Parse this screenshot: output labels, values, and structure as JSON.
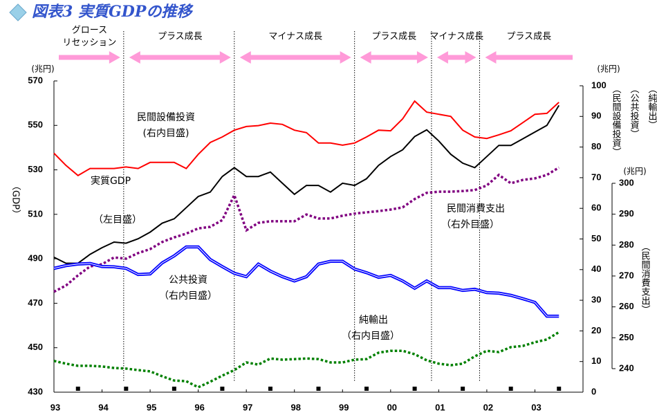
{
  "chart_data": {
    "type": "line",
    "title": "図表3 実質GDPの推移",
    "x": [
      1993,
      1993.25,
      1993.5,
      1993.75,
      1994,
      1994.25,
      1994.5,
      1994.75,
      1995,
      1995.25,
      1995.5,
      1995.75,
      1996,
      1996.25,
      1996.5,
      1996.75,
      1997,
      1997.25,
      1997.5,
      1997.75,
      1998,
      1998.25,
      1998.5,
      1998.75,
      1999,
      1999.25,
      1999.5,
      1999.75,
      2000,
      2000.25,
      2000.5,
      2000.75,
      2001,
      2001.25,
      2001.5,
      2001.75,
      2002,
      2002.25,
      2002.5,
      2002.75,
      2003,
      2003.25,
      2003.5
    ],
    "xlim": [
      1993,
      2004
    ],
    "xticks": [
      {
        "value": 1993,
        "label": "93"
      },
      {
        "value": 1994,
        "label": "94"
      },
      {
        "value": 1995,
        "label": "95"
      },
      {
        "value": 1996,
        "label": "96"
      },
      {
        "value": 1997,
        "label": "97"
      },
      {
        "value": 1998,
        "label": "98"
      },
      {
        "value": 1999,
        "label": "99"
      },
      {
        "value": 2000,
        "label": "00"
      },
      {
        "value": 2001,
        "label": "01"
      },
      {
        "value": 2002,
        "label": "02"
      },
      {
        "value": 2003,
        "label": "03"
      }
    ],
    "xminorticks": [
      1993.5,
      1994.5,
      1995.5,
      1996.5,
      1997.5,
      1998.5,
      1999.5,
      2000.5,
      2001.5,
      2002.5,
      2003.5
    ],
    "ylim": [
      430,
      570
    ],
    "yticks": [
      430,
      450,
      470,
      490,
      510,
      530,
      550,
      570
    ],
    "ylabel": "（GDP）",
    "yunit": "(兆円)",
    "y2lim": [
      0,
      100
    ],
    "y2ticks": [
      0,
      10,
      20,
      30,
      40,
      50,
      60,
      70,
      80,
      90,
      100
    ],
    "y2unit": "(兆円)",
    "y2labels": [
      "（民間設備投資）",
      "（公共投資）",
      "（純輸出）"
    ],
    "y3lim": [
      240,
      300
    ],
    "y3ticks": [
      240,
      250,
      260,
      270,
      280,
      290,
      300
    ],
    "y3unit": "(兆円)",
    "y3label": "（民間消費支出）",
    "phase_boundaries": [
      1994.45,
      1996.75,
      1999.25,
      2000.85,
      2001.85
    ],
    "phases": [
      {
        "label": [
          "グロース",
          "リセッション"
        ]
      },
      {
        "label": [
          "プラス成長"
        ]
      },
      {
        "label": [
          "マイナス成長"
        ]
      },
      {
        "label": [
          "プラス成長"
        ]
      },
      {
        "label": [
          "マイナス成長"
        ]
      },
      {
        "label": [
          "プラス成長"
        ]
      }
    ],
    "series": [
      {
        "name": "民間設備投資",
        "note": "(右内目盛)",
        "color": "#ff0000",
        "style": "solid",
        "axis": "y2",
        "values": [
          78,
          74,
          70.7,
          73,
          73,
          73,
          73.5,
          73,
          75,
          75,
          75,
          73,
          77.6,
          81.5,
          83.3,
          85.5,
          86.7,
          87,
          87.8,
          87.4,
          85.5,
          84.7,
          81.3,
          81.3,
          80.6,
          81.3,
          83.3,
          85.5,
          85.3,
          89.2,
          95,
          91.4,
          90.7,
          90,
          85.5,
          83.3,
          82.8,
          84,
          85.3,
          88,
          90.7,
          91,
          94.6
        ]
      },
      {
        "name": "実質GDP",
        "note": "（左目盛）",
        "color": "#000000",
        "style": "solid",
        "axis": "y",
        "values": [
          490.7,
          488,
          488,
          492,
          495,
          497.5,
          497,
          499,
          502,
          506,
          508,
          513,
          518,
          520,
          527,
          531,
          527,
          527,
          529,
          524,
          519,
          523,
          523,
          520,
          524,
          523,
          526,
          532,
          536,
          539,
          545,
          548,
          543,
          537,
          533,
          531,
          536,
          541,
          541,
          544,
          547,
          550,
          559
        ]
      },
      {
        "name": "民間消費支出",
        "note": "（右外目盛）",
        "color": "#800080",
        "style": "dotted",
        "axis": "y3",
        "values": [
          264.9,
          266.9,
          270.2,
          273.1,
          273.8,
          276,
          275.6,
          277.4,
          278.7,
          281,
          282.5,
          283.7,
          285.4,
          285.9,
          288.1,
          296.2,
          284.8,
          287.2,
          287.7,
          287.7,
          287.7,
          289.9,
          288.6,
          288.6,
          289.5,
          290.2,
          290.6,
          291,
          291.5,
          292.2,
          294.9,
          296.9,
          297.3,
          297.3,
          297.5,
          297.8,
          299.3,
          302.7,
          300,
          301.1,
          301.6,
          302.7,
          305.1
        ]
      },
      {
        "name": "公共投資",
        "note": "（右内目盛）",
        "color": "#0000ff",
        "style": "double",
        "axis": "y2",
        "values": [
          40.4,
          41.3,
          41.8,
          42,
          41,
          40.9,
          40.4,
          38.4,
          38.6,
          42.2,
          44.5,
          47.4,
          47.4,
          43.3,
          41,
          38.8,
          37.7,
          41.8,
          39.5,
          37.7,
          36.3,
          37.7,
          41.8,
          42.7,
          42.7,
          40.2,
          39,
          37.5,
          38.1,
          36.3,
          33.9,
          36.3,
          34.1,
          34.1,
          33.2,
          33.6,
          32.5,
          32.3,
          31.6,
          30.5,
          29.3,
          24.8,
          24.8
        ]
      },
      {
        "name": "純輸出",
        "note": "（右内目盛）",
        "color": "#008000",
        "style": "dotted",
        "axis": "y2",
        "values": [
          10.2,
          9.3,
          8.6,
          8.6,
          8.4,
          7.9,
          7.7,
          7.2,
          6.8,
          5.2,
          3.8,
          3.6,
          1.6,
          3.4,
          5.4,
          7.2,
          9.7,
          9,
          11,
          10.6,
          10.8,
          11,
          10.8,
          9.7,
          9.7,
          10.6,
          10.8,
          12.9,
          13.5,
          13.5,
          12.4,
          10.4,
          9.3,
          8.8,
          9.3,
          11.7,
          13.5,
          13.1,
          14.7,
          15.1,
          16.3,
          17.2,
          19.6
        ]
      }
    ]
  }
}
